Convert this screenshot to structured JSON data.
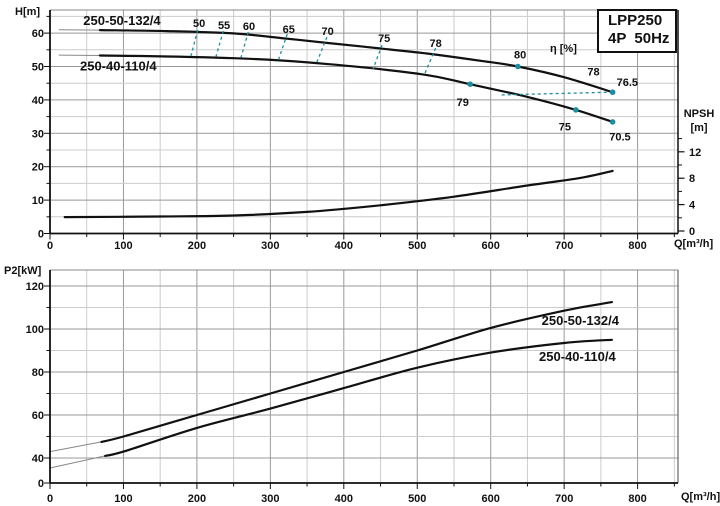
{
  "title_box": {
    "line1": "LPP250",
    "line2": "4P  50Hz"
  },
  "pump_models": [
    "250-50-132/4",
    "250-40-110/4"
  ],
  "colors": {
    "accent": "#1b8ea1",
    "curve": "#111111",
    "grid_minor": "#cccccc",
    "grid_major": "#999999",
    "axis": "#111111",
    "lead": "#888888",
    "frame": "#888888"
  },
  "chart_data": [
    {
      "id": "head-chart",
      "type": "line",
      "ylabel": "H[m]",
      "xlabel": "Q[m³/h]",
      "x_range": [
        0,
        855
      ],
      "y_range": [
        0,
        66.9
      ],
      "x_major": [
        0,
        100,
        200,
        300,
        400,
        500,
        600,
        700,
        800
      ],
      "x_minor_step": 50,
      "y_major": [
        0,
        10,
        20,
        30,
        40,
        50,
        60
      ],
      "y_minor_step": 5,
      "grid": true,
      "legend_position": "on-curve",
      "right_axis": {
        "label": "NPSH",
        "unit": "[m]",
        "major": [
          0,
          4,
          8,
          12
        ],
        "minor": [
          2,
          6,
          10,
          14
        ]
      },
      "series": [
        {
          "name": "250-50-132/4",
          "axis": "left",
          "lead": [
            [
              12,
              61.0
            ],
            [
              68,
              60.9
            ]
          ],
          "points": [
            [
              68,
              60.9
            ],
            [
              160,
              60.6
            ],
            [
              250,
              59.9
            ],
            [
              315,
              58.5
            ],
            [
              380,
              57.0
            ],
            [
              450,
              55.4
            ],
            [
              520,
              53.7
            ],
            [
              590,
              51.6
            ],
            [
              637,
              50.0
            ],
            [
              700,
              46.8
            ],
            [
              766,
              42.3
            ]
          ]
        },
        {
          "name": "250-40-110/4",
          "axis": "left",
          "lead": [
            [
              12,
              53.4
            ],
            [
              68,
              53.3
            ]
          ],
          "points": [
            [
              68,
              53.3
            ],
            [
              160,
              53.0
            ],
            [
              250,
              52.5
            ],
            [
              315,
              51.8
            ],
            [
              380,
              50.7
            ],
            [
              450,
              49.2
            ],
            [
              520,
              47.2
            ],
            [
              572,
              44.7
            ],
            [
              650,
              40.9
            ],
            [
              716,
              37.0
            ],
            [
              766,
              33.4
            ]
          ]
        },
        {
          "name": "NPSH",
          "axis": "right",
          "points": [
            [
              20,
              2.1
            ],
            [
              150,
              2.2
            ],
            [
              250,
              2.35
            ],
            [
              350,
              2.9
            ],
            [
              450,
              3.9
            ],
            [
              550,
              5.2
            ],
            [
              650,
              6.9
            ],
            [
              720,
              8.0
            ],
            [
              766,
              9.1
            ]
          ]
        }
      ],
      "efficiency_markers": [
        {
          "x": 637,
          "y": 50.0
        },
        {
          "x": 766,
          "y": 42.3
        },
        {
          "x": 572,
          "y": 44.7
        },
        {
          "x": 716,
          "y": 37.0
        },
        {
          "x": 766,
          "y": 33.4
        }
      ],
      "efficiency_dashes": [
        {
          "x1": 201,
          "y1": 60.9,
          "x2": 192,
          "y2": 53.2
        },
        {
          "x1": 236,
          "y1": 60.6,
          "x2": 226,
          "y2": 53.0
        },
        {
          "x1": 270,
          "y1": 60.3,
          "x2": 260,
          "y2": 52.7
        },
        {
          "x1": 323,
          "y1": 59.7,
          "x2": 311,
          "y2": 52.0
        },
        {
          "x1": 377,
          "y1": 58.8,
          "x2": 363,
          "y2": 51.1
        },
        {
          "x1": 452,
          "y1": 56.4,
          "x2": 440,
          "y2": 49.3
        },
        {
          "x1": 525,
          "y1": 55.5,
          "x2": 510,
          "y2": 47.7
        },
        {
          "x1": 615,
          "y1": 41.5,
          "x2": 763,
          "y2": 42.3
        }
      ],
      "annotations": [
        {
          "text": "50",
          "x": 203,
          "y": 63.0,
          "color": "black"
        },
        {
          "text": "55",
          "x": 237,
          "y": 62.4,
          "color": "black"
        },
        {
          "text": "60",
          "x": 271,
          "y": 62.1,
          "color": "black"
        },
        {
          "text": "65",
          "x": 325,
          "y": 61.2,
          "color": "black"
        },
        {
          "text": "70",
          "x": 378,
          "y": 60.7,
          "color": "black"
        },
        {
          "text": "75",
          "x": 455,
          "y": 58.6,
          "color": "black"
        },
        {
          "text": "78",
          "x": 525,
          "y": 57.1,
          "color": "black"
        },
        {
          "text": "80",
          "x": 640,
          "y": 53.6,
          "color": "black"
        },
        {
          "text": "η [%]",
          "x": 699,
          "y": 55.6,
          "color": "black"
        },
        {
          "text": "78",
          "x": 740,
          "y": 48.5,
          "color": "black"
        },
        {
          "text": "76.5",
          "x": 786,
          "y": 45.3,
          "color": "black"
        },
        {
          "text": "79",
          "x": 562,
          "y": 39.3,
          "color": "black"
        },
        {
          "text": "75",
          "x": 701,
          "y": 32.0,
          "color": "black"
        },
        {
          "text": "70.5",
          "x": 776,
          "y": 29.0,
          "color": "black"
        },
        {
          "text": "250-50-132/4",
          "x": 98,
          "y": 63.6,
          "color": "accent"
        },
        {
          "text": "250-40-110/4",
          "x": 93,
          "y": 50.0,
          "color": "accent"
        }
      ]
    },
    {
      "id": "power-chart",
      "type": "line",
      "ylabel": "P2[kW]",
      "xlabel": "Q[m³/h]",
      "x_range": [
        0,
        855
      ],
      "y_range": [
        0,
        127
      ],
      "y_axis_break": {
        "from": 0,
        "to": 40
      },
      "x_major": [
        0,
        100,
        200,
        300,
        400,
        500,
        600,
        700,
        800
      ],
      "x_minor_step": 50,
      "y_major": [
        0,
        40,
        60,
        80,
        100,
        120
      ],
      "y_minor": [
        50,
        70,
        90,
        110
      ],
      "grid": true,
      "series": [
        {
          "name": "250-50-132/4",
          "lead": [
            [
              0,
              43
            ],
            [
              70,
              47.5
            ]
          ],
          "points": [
            [
              70,
              47.5
            ],
            [
              100,
              50
            ],
            [
              200,
              60
            ],
            [
              300,
              70
            ],
            [
              400,
              80
            ],
            [
              500,
              90
            ],
            [
              600,
              100.5
            ],
            [
              700,
              108.5
            ],
            [
              765,
              112.5
            ]
          ]
        },
        {
          "name": "250-40-110/4",
          "lead": [
            [
              0,
              24
            ],
            [
              75,
              41
            ]
          ],
          "points": [
            [
              75,
              41
            ],
            [
              100,
              43
            ],
            [
              200,
              54
            ],
            [
              300,
              63
            ],
            [
              400,
              72.5
            ],
            [
              500,
              82
            ],
            [
              600,
              89
            ],
            [
              700,
              93.5
            ],
            [
              765,
              95
            ]
          ]
        }
      ],
      "annotations": [
        {
          "text": "250-50-132/4",
          "x": 722,
          "y": 103.7,
          "color": "accent"
        },
        {
          "text": "250-40-110/4",
          "x": 718,
          "y": 87.0,
          "color": "accent"
        }
      ]
    }
  ]
}
